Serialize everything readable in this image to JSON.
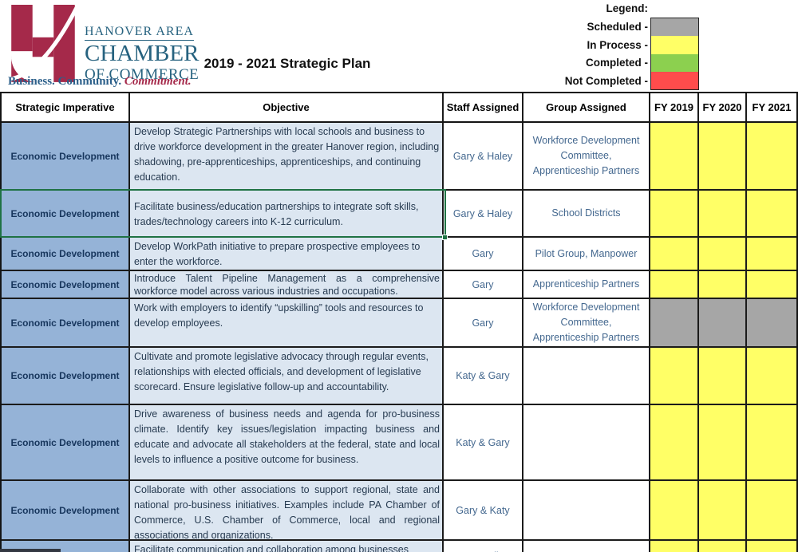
{
  "banner": {
    "title": "2019 - 2021 Strategic Plan",
    "logo": {
      "line1": "HANOVER AREA",
      "line2": "CHAMBER",
      "line3": "OF COMMERCE",
      "tagline_blue": "Business. Community. ",
      "tagline_red": "Commitment.",
      "crimson": "#a5294a",
      "teal": "#26627f"
    }
  },
  "legend": {
    "heading": "Legend:",
    "items": [
      {
        "label": "Scheduled -",
        "status": "scheduled",
        "color": "#a6a6a6"
      },
      {
        "label": "In Process -",
        "status": "in_process",
        "color": "#ffff66"
      },
      {
        "label": "Completed -",
        "status": "completed",
        "color": "#8cd04f"
      },
      {
        "label": "Not Completed -",
        "status": "not_completed",
        "color": "#ff4c4c"
      }
    ]
  },
  "table": {
    "columns": [
      "Strategic Imperative",
      "Objective",
      "Staff Assigned",
      "Group Assigned",
      "FY 2019",
      "FY 2020",
      "FY 2021"
    ],
    "status_colors": {
      "scheduled": "#a6a6a6",
      "in_process": "#ffff66",
      "completed": "#8cd04f",
      "not_completed": "#ff4c4c"
    },
    "rows": [
      {
        "imperative": "Economic Development",
        "objective": "Develop Strategic Partnerships with local  schools and business to drive workforce development in the greater Hanover region, including shadowing, pre-apprenticeships, apprenticeships, and continuing education.",
        "staff": "Gary & Haley",
        "group": "Workforce Development Committee, Apprenticeship Partners",
        "fy2019": "in_process",
        "fy2020": "in_process",
        "fy2021": "in_process"
      },
      {
        "imperative": "Economic Development",
        "objective": "Facilitate business/education partnerships to integrate soft skills, trades/technology careers into K-12 curriculum.",
        "staff": "Gary & Haley",
        "group": "School Districts",
        "fy2019": "in_process",
        "fy2020": "in_process",
        "fy2021": "in_process"
      },
      {
        "imperative": "Economic Development",
        "objective": "Develop WorkPath initiative to prepare prospective employees to enter the workforce.",
        "staff": "Gary",
        "group": "Pilot Group, Manpower",
        "fy2019": "in_process",
        "fy2020": "in_process",
        "fy2021": "in_process"
      },
      {
        "imperative": "Economic Development",
        "objective": "Introduce Talent Pipeline Management as a comprehensive workforce model across various industries and occupations.",
        "staff": "Gary",
        "group": "Apprenticeship Partners",
        "fy2019": "in_process",
        "fy2020": "in_process",
        "fy2021": "in_process"
      },
      {
        "imperative": "Economic Development",
        "objective": "Work with employers to identify “upskilling” tools and resources to develop employees.",
        "staff": "Gary",
        "group": "Workforce Development Committee, Apprenticeship Partners",
        "fy2019": "scheduled",
        "fy2020": "scheduled",
        "fy2021": "scheduled"
      },
      {
        "imperative": "Economic Development",
        "objective": "Cultivate and promote legislative advocacy through regular events, relationships with elected officials, and development of legislative scorecard. Ensure legislative follow-up and accountability.",
        "staff": "Katy & Gary",
        "group": "",
        "fy2019": "in_process",
        "fy2020": "in_process",
        "fy2021": "in_process"
      },
      {
        "imperative": "Economic Development",
        "objective": "Drive awareness of business needs and agenda for pro-business climate. Identify key issues/legislation impacting business and educate and advocate all stakeholders at the federal, state and local levels to influence a positive outcome for business.",
        "staff": "Katy & Gary",
        "group": "",
        "fy2019": "in_process",
        "fy2020": "in_process",
        "fy2021": "in_process"
      },
      {
        "imperative": "Economic Development",
        "objective": "Collaborate with other associations to support regional, state and national pro-business initiatives. Examples include PA Chamber of Commerce, U.S. Chamber of Commerce, local and regional associations and organizations.",
        "staff": "Gary & Katy",
        "group": "",
        "fy2019": "in_process",
        "fy2020": "in_process",
        "fy2021": "in_process"
      },
      {
        "imperative": "",
        "objective": "Facilitate communication and collaboration among businesses",
        "staff": "Gary, Emily &",
        "group": "",
        "fy2019": "in_process",
        "fy2020": "in_process",
        "fy2021": "in_process"
      }
    ]
  }
}
